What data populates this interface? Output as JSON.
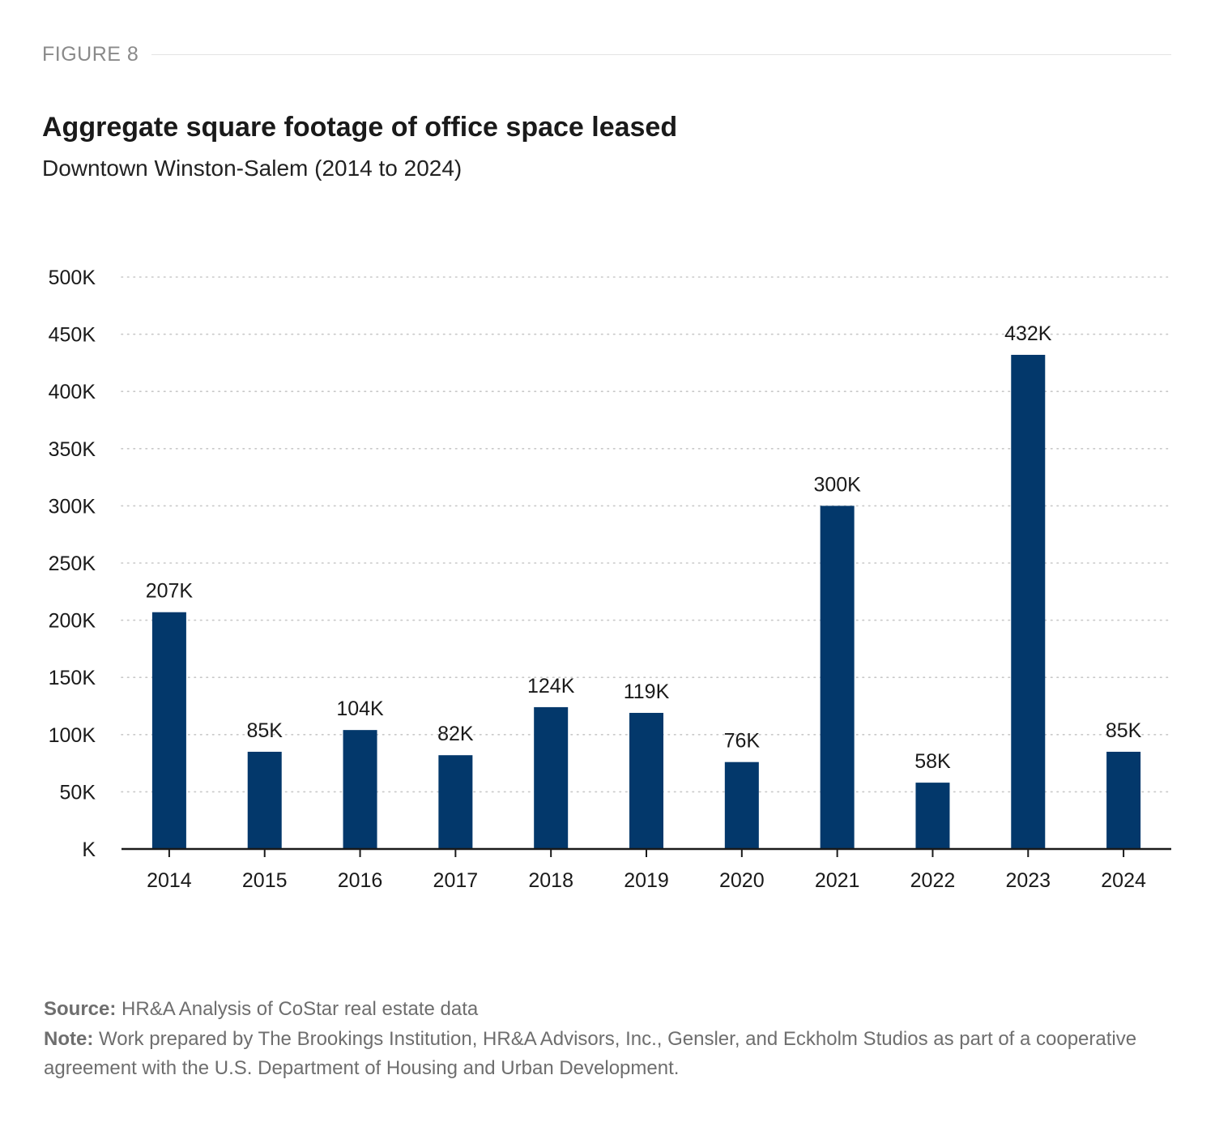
{
  "figure_label": "FIGURE 8",
  "footnotes": {
    "source_label": "Source:",
    "source_text": "HR&A Analysis of CoStar real estate data",
    "note_label": "Note:",
    "note_text": "Work prepared by The Brookings Institution, HR&A Advisors, Inc., Gensler, and Eckholm Studios as part of a cooperative agreement with the U.S. Department of Housing and Urban Development."
  },
  "colors": {
    "bar": "#03386b",
    "grid": "#c8c8c8",
    "axis": "#1a1a1a"
  },
  "chart_data": {
    "type": "bar",
    "title": "Aggregate square footage of office space leased",
    "subtitle": "Downtown Winston-Salem (2014 to 2024)",
    "xlabel": "",
    "ylabel": "",
    "categories": [
      "2014",
      "2015",
      "2016",
      "2017",
      "2018",
      "2019",
      "2020",
      "2021",
      "2022",
      "2023",
      "2024"
    ],
    "values": [
      207,
      85,
      104,
      82,
      124,
      119,
      76,
      300,
      58,
      432,
      85
    ],
    "value_labels": [
      "207K",
      "85K",
      "104K",
      "82K",
      "124K",
      "119K",
      "76K",
      "300K",
      "58K",
      "432K",
      "85K"
    ],
    "units": "thousand square feet",
    "ylim": [
      0,
      500
    ],
    "yticks": [
      0,
      50,
      100,
      150,
      200,
      250,
      300,
      350,
      400,
      450,
      500
    ],
    "ytick_labels": [
      "K",
      "50K",
      "100K",
      "150K",
      "200K",
      "250K",
      "300K",
      "350K",
      "400K",
      "450K",
      "500K"
    ],
    "grid": true,
    "legend": "none"
  }
}
